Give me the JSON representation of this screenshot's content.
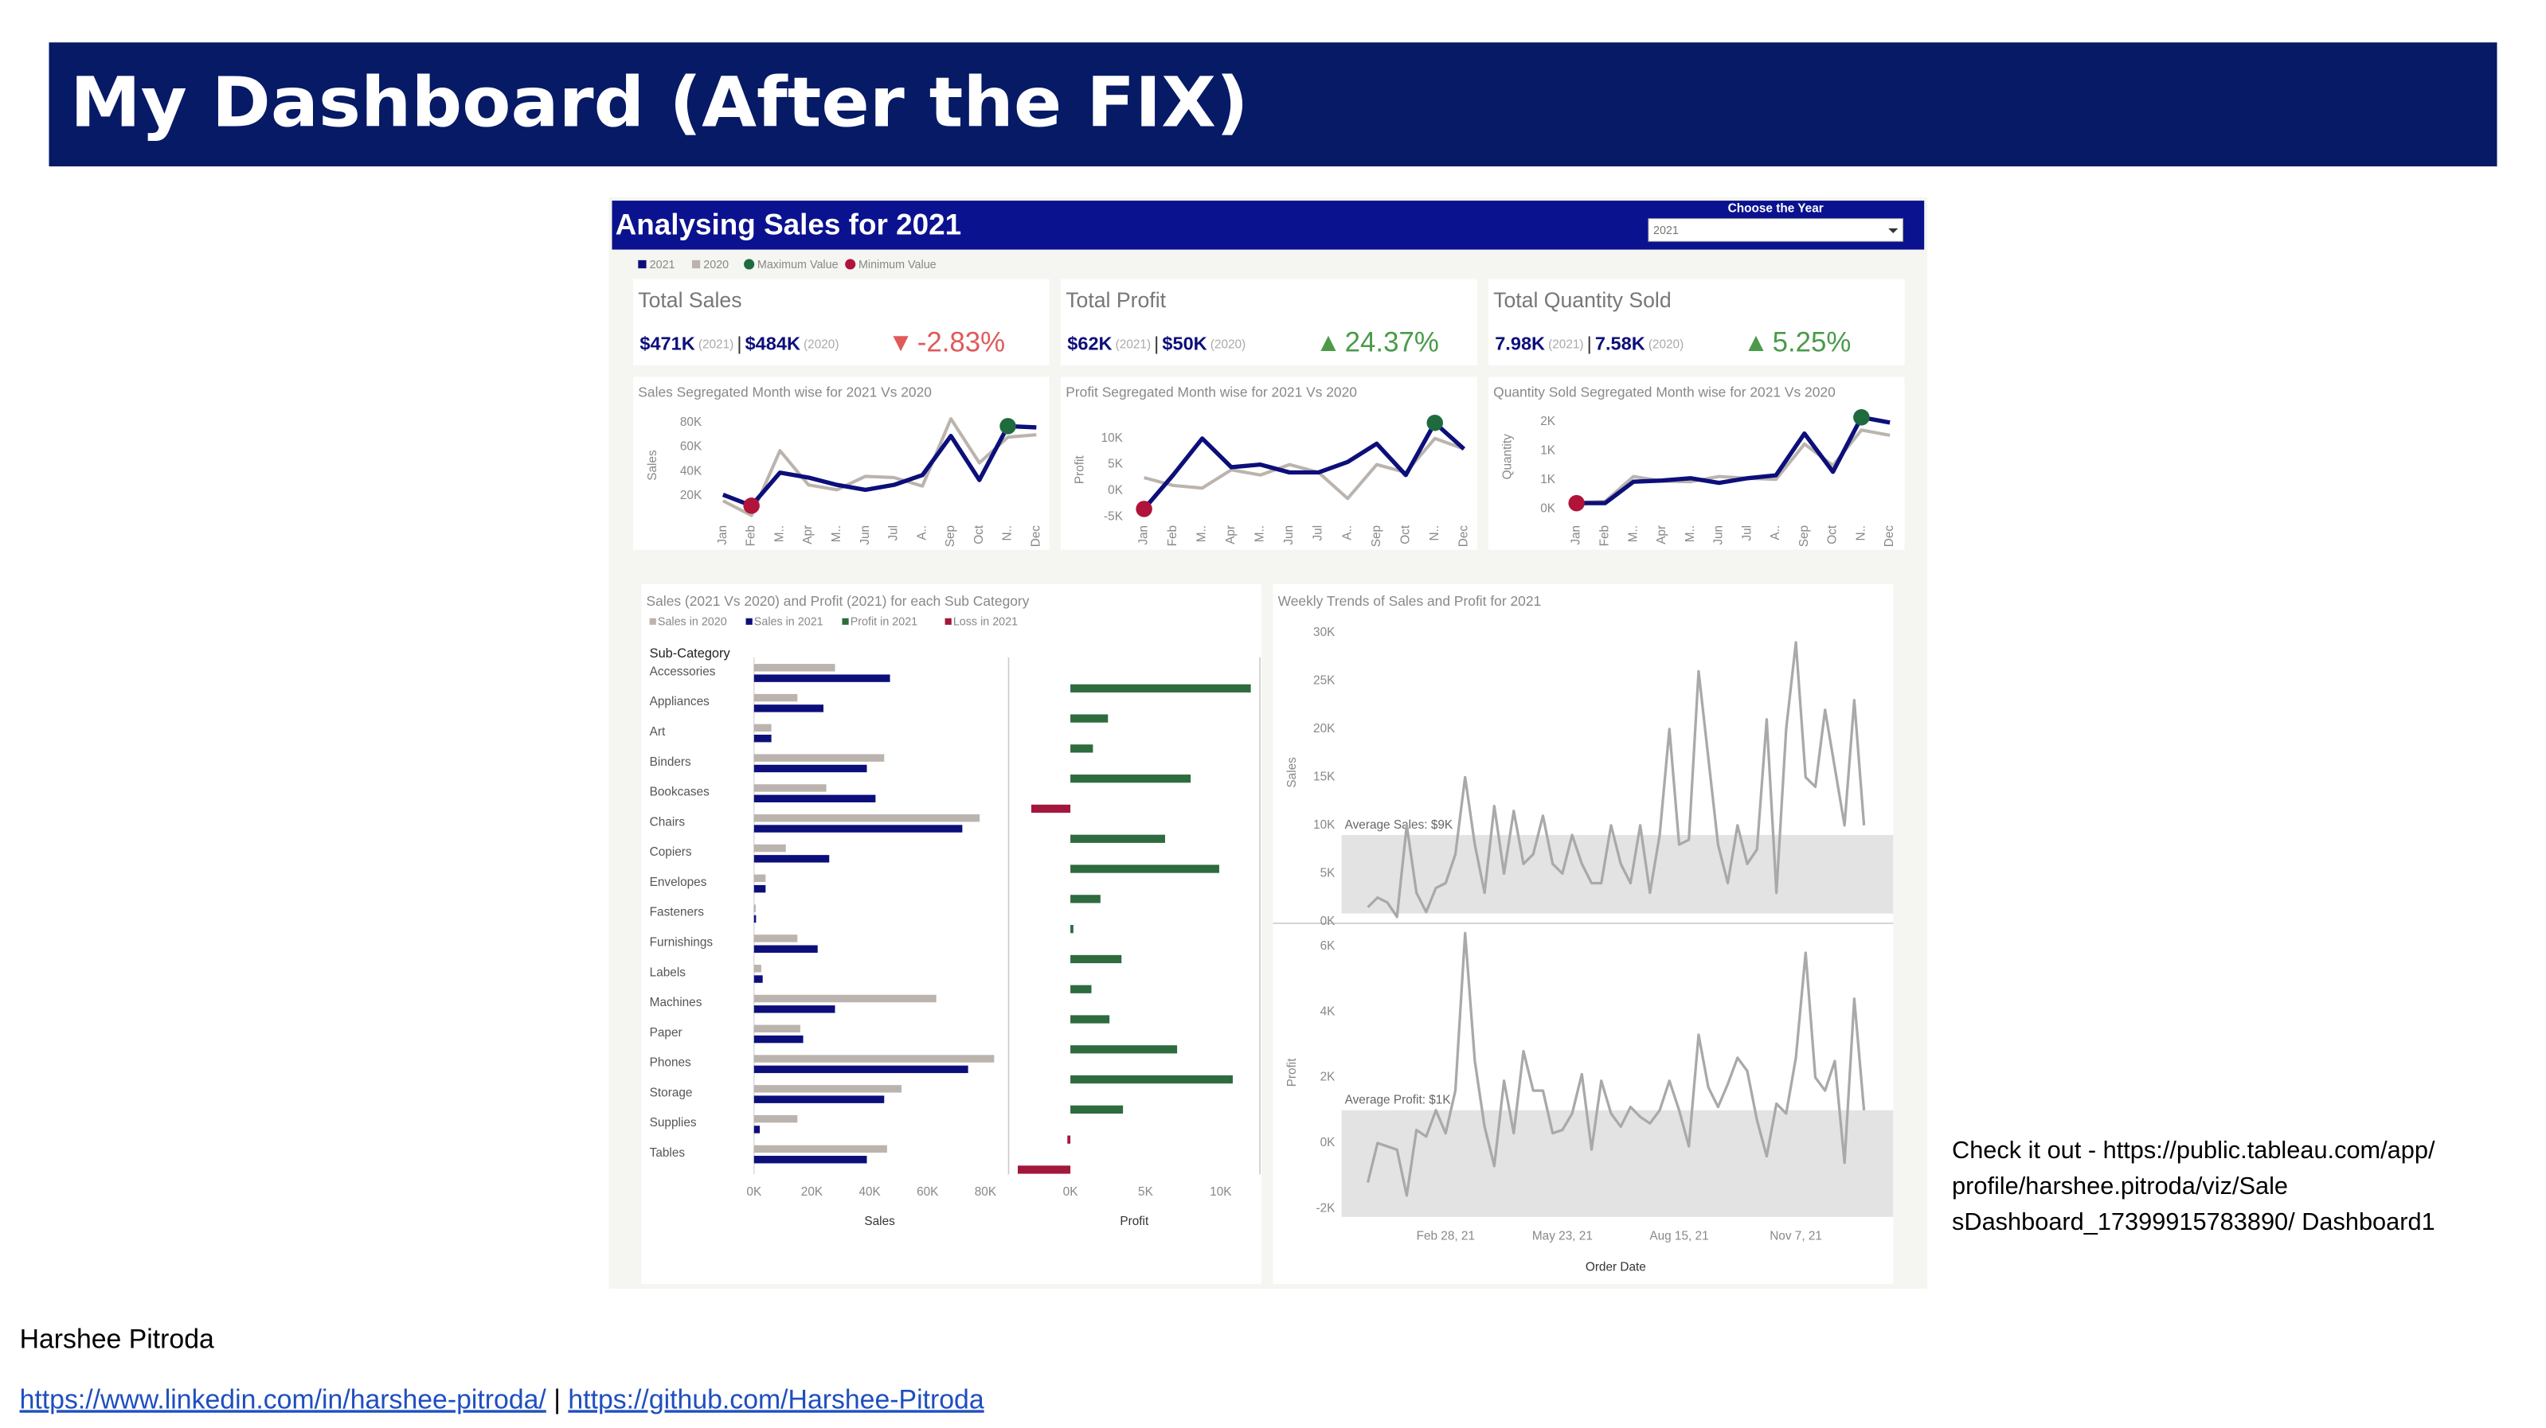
{
  "slide": {
    "title": "My Dashboard (After the FIX)",
    "author": "Harshee Pitroda",
    "links": [
      "https://www.linkedin.com/in/harshee-pitroda/",
      "https://github.com/Harshee-Pitroda"
    ],
    "link_separator": "|",
    "note_lines": [
      "Check it out - https://public.tableau.com/app/",
      "profile/harshee.pitroda/viz/Sale",
      "sDashboard_17399915783890/ Dashboard1"
    ]
  },
  "dashboard": {
    "title": "Analysing Sales for 2021",
    "year_select": {
      "label": "Choose the Year",
      "value": "2021"
    },
    "markers": [
      {
        "label": "Maximum Value",
        "color": "#1e6b3d"
      },
      {
        "label": "Minimum Value",
        "color": "#b0143a"
      }
    ],
    "kpis": [
      {
        "title": "Total Sales",
        "current": "$471K",
        "current_year": "(2021)",
        "separator": "|",
        "previous": "$484K",
        "previous_year": "(2020)",
        "arrow": "▼",
        "change": "-2.83%",
        "color": "#e05a5a"
      },
      {
        "title": "Total Profit",
        "current": "$62K",
        "current_year": "(2021)",
        "separator": "|",
        "previous": "$50K",
        "previous_year": "(2020)",
        "arrow": "▲",
        "change": "24.37%",
        "color": "#4a9a4a"
      },
      {
        "title": "Total Quantity Sold",
        "current": "7.98K",
        "current_year": "(2021)",
        "separator": "|",
        "previous": "7.58K",
        "previous_year": "(2020)",
        "arrow": "▲",
        "change": "5.25%",
        "color": "#4a9a4a"
      }
    ]
  },
  "chart_data": [
    {
      "type": "line",
      "title": "Sales Segregated Month wise for 2021 Vs 2020",
      "ylabel": "Sales",
      "categories": [
        "Jan",
        "Feb",
        "M..",
        "Apr",
        "M..",
        "Jun",
        "Jul",
        "A..",
        "Sep",
        "Oct",
        "N..",
        "Dec"
      ],
      "series": [
        {
          "name": "2021",
          "color": "#0c0f7a",
          "values": [
            21000,
            12000,
            39000,
            35000,
            29000,
            25000,
            29000,
            37000,
            69000,
            33000,
            77000,
            76000
          ]
        },
        {
          "name": "2020",
          "color": "#bbb4ae",
          "values": [
            16000,
            4000,
            57000,
            29000,
            25000,
            36000,
            35000,
            28000,
            83000,
            47000,
            68000,
            70000
          ]
        }
      ],
      "ylim": [
        0,
        90000
      ],
      "yticks": [
        {
          "value": 20000,
          "label": "20K"
        },
        {
          "value": 40000,
          "label": "40K"
        },
        {
          "value": 60000,
          "label": "60K"
        },
        {
          "value": 80000,
          "label": "80K"
        }
      ]
    },
    {
      "type": "line",
      "title": "Profit Segregated Month wise for 2021 Vs 2020",
      "ylabel": "Profit",
      "categories": [
        "Jan",
        "Feb",
        "M..",
        "Apr",
        "M..",
        "Jun",
        "Jul",
        "A..",
        "Sep",
        "Oct",
        "N..",
        "Dec"
      ],
      "series": [
        {
          "name": "2021",
          "color": "#0c0f7a",
          "values": [
            -3500,
            3000,
            10000,
            4500,
            5000,
            3500,
            3500,
            5500,
            9000,
            3000,
            13000,
            8000
          ]
        },
        {
          "name": "2020",
          "color": "#bbb4ae",
          "values": [
            2500,
            1000,
            500,
            4000,
            3000,
            5000,
            3500,
            -1500,
            5000,
            3500,
            10000,
            8000
          ]
        }
      ],
      "ylim": [
        -6000,
        14000
      ],
      "yticks": [
        {
          "value": -5000,
          "label": "-5K"
        },
        {
          "value": 0,
          "label": "0K"
        },
        {
          "value": 5000,
          "label": "5K"
        },
        {
          "value": 10000,
          "label": "10K"
        }
      ]
    },
    {
      "type": "line",
      "title": "Quantity Sold Segregated Month wise for 2021 Vs 2020",
      "ylabel": "Quantity",
      "categories": [
        "Jan",
        "Feb",
        "M..",
        "Apr",
        "M..",
        "Jun",
        "Jul",
        "A..",
        "Sep",
        "Oct",
        "N..",
        "Dec"
      ],
      "series": [
        {
          "name": "2021",
          "color": "#0c0f7a",
          "values": [
            100,
            100,
            470,
            490,
            530,
            450,
            530,
            580,
            1300,
            640,
            1580,
            1490
          ]
        },
        {
          "name": "2020",
          "color": "#bbb4ae",
          "values": [
            110,
            130,
            560,
            480,
            470,
            560,
            530,
            510,
            1120,
            750,
            1360,
            1270
          ]
        }
      ],
      "ylim": [
        0,
        1800
      ],
      "yticks": [
        {
          "value": 0,
          "label": "0K"
        },
        {
          "value": 500,
          "label": "1K"
        },
        {
          "value": 1000,
          "label": "1K"
        },
        {
          "value": 1500,
          "label": "2K"
        }
      ]
    },
    {
      "type": "hbar",
      "title": "Sales (2021 Vs 2020) and Profit (2021) for each Sub Category",
      "ylabel": "Sub-Category",
      "categories": [
        "Accessories",
        "Appliances",
        "Art",
        "Binders",
        "Bookcases",
        "Chairs",
        "Copiers",
        "Envelopes",
        "Fasteners",
        "Furnishings",
        "Labels",
        "Machines",
        "Paper",
        "Phones",
        "Storage",
        "Supplies",
        "Tables"
      ],
      "series": [
        {
          "name": "Sales in 2020",
          "color": "#bbb4ae",
          "values": [
            28000,
            15000,
            6000,
            45000,
            25000,
            78000,
            11000,
            4000,
            600,
            15000,
            2500,
            63000,
            16000,
            83000,
            51000,
            15000,
            46000
          ]
        },
        {
          "name": "Sales in 2021",
          "color": "#0c0f7a",
          "values": [
            47000,
            24000,
            6000,
            39000,
            42000,
            72000,
            26000,
            4000,
            700,
            22000,
            3000,
            28000,
            17000,
            74000,
            45000,
            2000,
            39000
          ]
        },
        {
          "name": "Profit in 2021",
          "color": "#2e6b3e",
          "axis": "x2",
          "negative_name": "Loss in 2021",
          "negative_color": "#a3173c",
          "values": [
            12000,
            2500,
            1500,
            8000,
            -2600,
            6300,
            9900,
            2000,
            200,
            3400,
            1400,
            2600,
            7100,
            10800,
            3500,
            -200,
            -3500
          ]
        }
      ],
      "xlabel": "Sales",
      "xlim": [
        0,
        88000
      ],
      "xticks": [
        {
          "value": 0,
          "label": "0K"
        },
        {
          "value": 20000,
          "label": "20K"
        },
        {
          "value": 40000,
          "label": "40K"
        },
        {
          "value": 60000,
          "label": "60K"
        },
        {
          "value": 80000,
          "label": "80K"
        }
      ],
      "x2label": "Profit",
      "x2lim": [
        -4000,
        12500
      ],
      "x2ticks": [
        {
          "value": 0,
          "label": "0K"
        },
        {
          "value": 5000,
          "label": "5K"
        },
        {
          "value": 10000,
          "label": "10K"
        }
      ]
    },
    {
      "type": "weekly",
      "title": "Weekly Trends of Sales and Profit for 2021",
      "ylabel": "Sales",
      "x": [
        1,
        2,
        3,
        4,
        5,
        6,
        7,
        8,
        9,
        10,
        11,
        12,
        13,
        14,
        15,
        16,
        17,
        18,
        19,
        20,
        21,
        22,
        23,
        24,
        25,
        26,
        27,
        28,
        29,
        30,
        31,
        32,
        33,
        34,
        35,
        36,
        37,
        38,
        39,
        40,
        41,
        42,
        43,
        44,
        45,
        46,
        47,
        48,
        49,
        50,
        51,
        52
      ],
      "series": [
        {
          "color": "#a9a9a9",
          "values": [
            1500,
            2500,
            2000,
            500,
            10000,
            3000,
            1000,
            3500,
            4000,
            7000,
            15000,
            8000,
            3000,
            12000,
            5000,
            11500,
            6000,
            7000,
            11000,
            6000,
            5000,
            9000,
            6000,
            4000,
            4000,
            10000,
            6000,
            4000,
            10000,
            3000,
            9000,
            20000,
            8000,
            8500,
            26000,
            17000,
            8000,
            4000,
            10000,
            6000,
            7500,
            21000,
            3000,
            20000,
            29000,
            15000,
            14000,
            22000,
            16000,
            10000,
            23000,
            10000
          ]
        }
      ],
      "average": {
        "value": 9000,
        "label": "Average Sales: $9K"
      },
      "xlim": [
        -1.7,
        55
      ],
      "ylim": [
        0,
        31000
      ],
      "yticks": [
        {
          "value": 0,
          "label": "0K"
        },
        {
          "value": 5000,
          "label": "5K"
        },
        {
          "value": 10000,
          "label": "10K"
        },
        {
          "value": 15000,
          "label": "15K"
        },
        {
          "value": 20000,
          "label": "20K"
        },
        {
          "value": 25000,
          "label": "25K"
        },
        {
          "value": 30000,
          "label": "30K"
        }
      ]
    },
    {
      "type": "weekly",
      "ylabel": "Profit",
      "xlabel": "Order Date",
      "x": [
        1,
        2,
        3,
        4,
        5,
        6,
        7,
        8,
        9,
        10,
        11,
        12,
        13,
        14,
        15,
        16,
        17,
        18,
        19,
        20,
        21,
        22,
        23,
        24,
        25,
        26,
        27,
        28,
        29,
        30,
        31,
        32,
        33,
        34,
        35,
        36,
        37,
        38,
        39,
        40,
        41,
        42,
        43,
        44,
        45,
        46,
        47,
        48,
        49,
        50,
        51,
        52
      ],
      "series": [
        {
          "color": "#a9a9a9",
          "values": [
            -1200,
            0,
            -100,
            -200,
            -1600,
            400,
            200,
            1000,
            300,
            1600,
            6400,
            2500,
            500,
            -700,
            1900,
            300,
            2800,
            1600,
            1600,
            300,
            400,
            900,
            2100,
            -200,
            1900,
            900,
            500,
            1100,
            800,
            600,
            1000,
            1900,
            1000,
            -100,
            3300,
            1700,
            1100,
            1800,
            2600,
            2200,
            700,
            -400,
            1200,
            900,
            2600,
            5800,
            2000,
            1600,
            2500,
            -600,
            4400,
            1000
          ]
        }
      ],
      "average": {
        "value": 1000,
        "label": "Average Profit: $1K"
      },
      "xlim": [
        -1.7,
        55
      ],
      "ylim": [
        -2500,
        6800
      ],
      "xticks": [
        {
          "value": 9,
          "label": "Feb 28, 21"
        },
        {
          "value": 21,
          "label": "May 23, 21"
        },
        {
          "value": 33,
          "label": "Aug 15, 21"
        },
        {
          "value": 45,
          "label": "Nov 7, 21"
        }
      ],
      "yticks": [
        {
          "value": -2000,
          "label": "-2K"
        },
        {
          "value": 0,
          "label": "0K"
        },
        {
          "value": 2000,
          "label": "2K"
        },
        {
          "value": 4000,
          "label": "4K"
        },
        {
          "value": 6000,
          "label": "6K"
        }
      ]
    }
  ]
}
